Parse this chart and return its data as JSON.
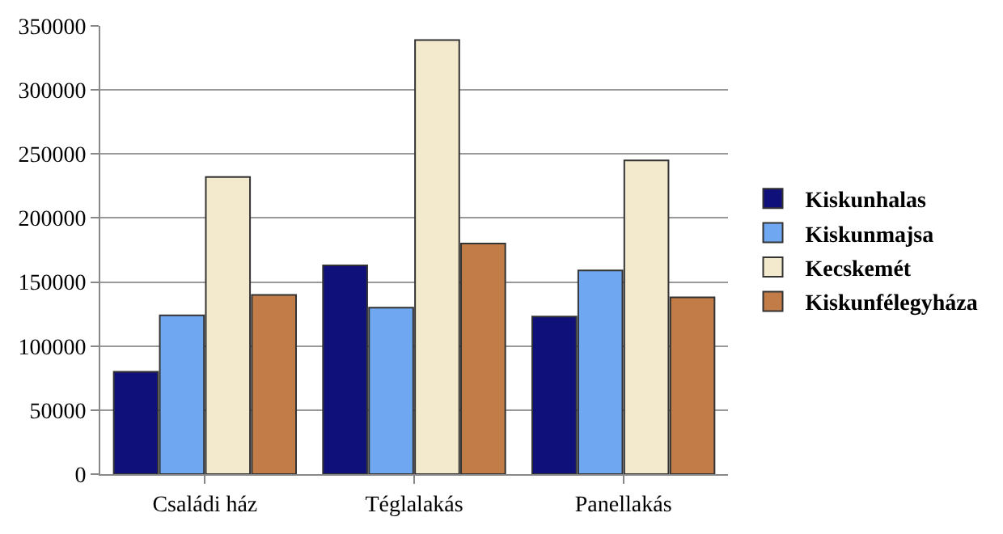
{
  "chart_data": {
    "type": "bar",
    "categories": [
      "Családi ház",
      "Téglalakás",
      "Panellakás"
    ],
    "series": [
      {
        "name": "Kiskunhalas",
        "color": "#10107a",
        "values": [
          80000,
          163000,
          123000
        ]
      },
      {
        "name": "Kiskunmajsa",
        "color": "#6fa8f0",
        "values": [
          124000,
          130000,
          159000
        ]
      },
      {
        "name": "Kecskemét",
        "color": "#f3e9cc",
        "values": [
          232000,
          339000,
          245000
        ]
      },
      {
        "name": "Kiskunfélegyháza",
        "color": "#c27c48",
        "values": [
          140000,
          180000,
          138000
        ]
      }
    ],
    "ylim": [
      0,
      350000
    ],
    "yticks": [
      0,
      50000,
      100000,
      150000,
      200000,
      250000,
      300000,
      350000
    ],
    "grid": "y",
    "legend": "right"
  }
}
